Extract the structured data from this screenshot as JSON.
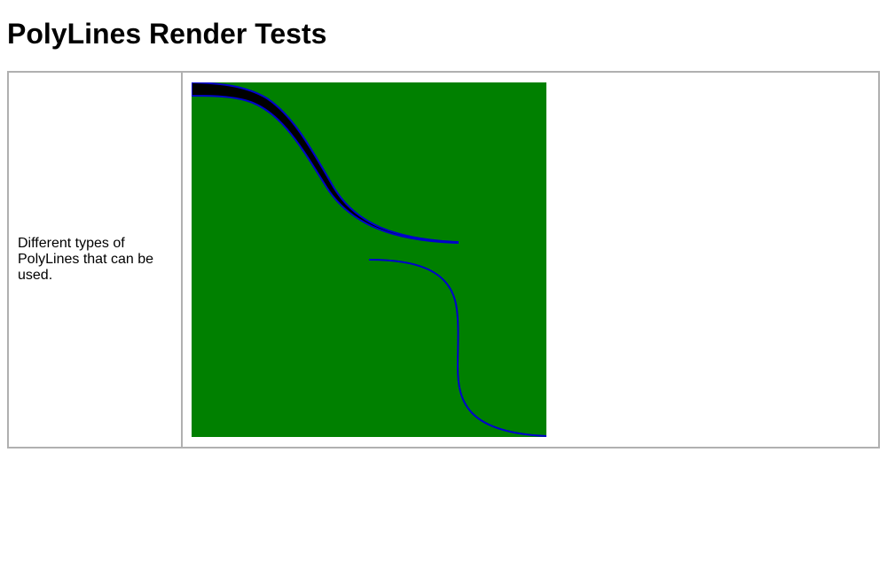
{
  "page": {
    "title": "PolyLines Render Tests"
  },
  "test_table": {
    "rows": [
      {
        "description": "Different types of PolyLines that can be used."
      }
    ]
  },
  "render": {
    "background_color": "#008000",
    "stroke_color": "#0000cc",
    "fill_color": "#000000"
  }
}
